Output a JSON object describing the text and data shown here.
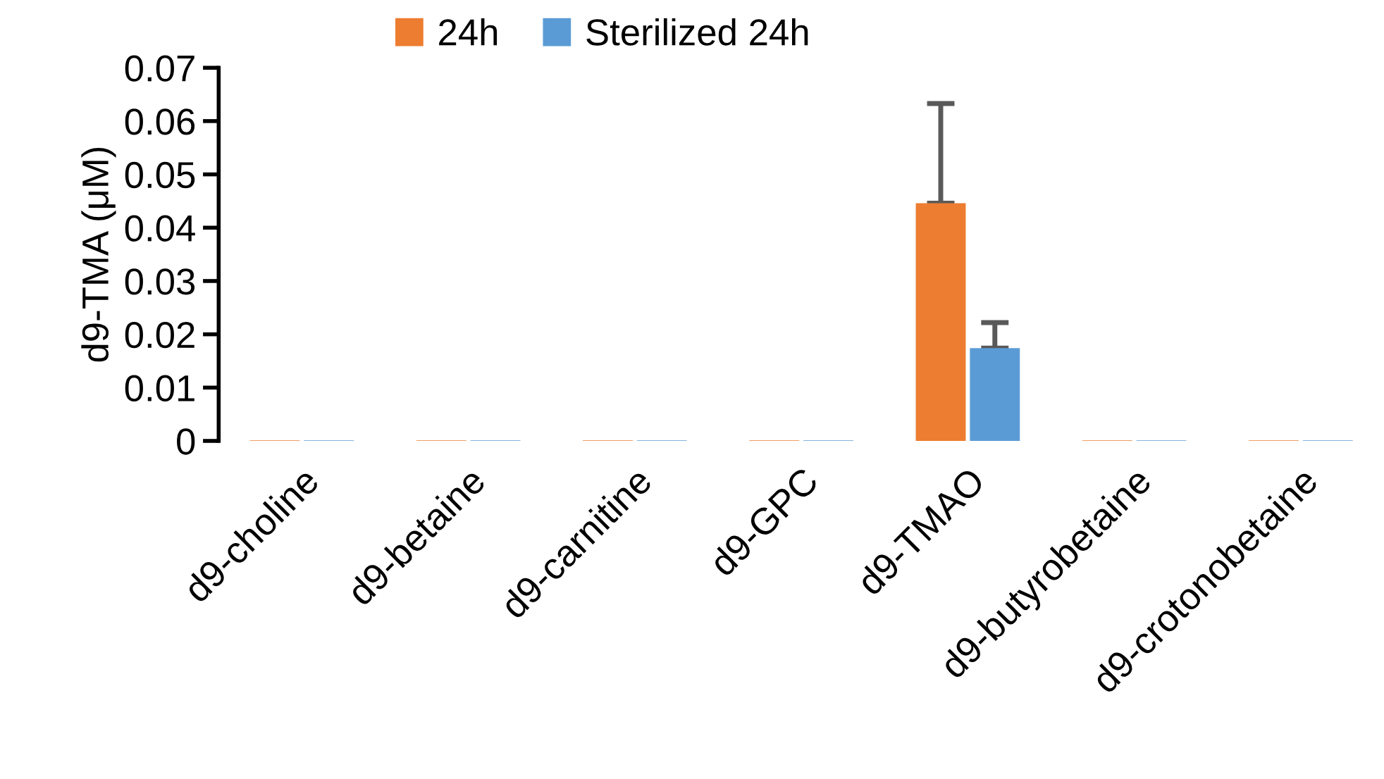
{
  "chart_data": {
    "type": "bar",
    "ylabel": "d9-TMA (μM)",
    "categories": [
      "d9-choline",
      "d9-betaine",
      "d9-carnitine",
      "d9-GPC",
      "d9-TMAO",
      "d9-butyrobetaine",
      "d9-crotonobetaine"
    ],
    "series": [
      {
        "name": "24h",
        "color": "#ed7d31",
        "values": [
          0.0001,
          0.0001,
          0.0001,
          0.0001,
          0.0446,
          0.0001,
          0.0001
        ],
        "errors": [
          null,
          null,
          null,
          null,
          [
            0.0446,
            0.0633
          ],
          null,
          null
        ]
      },
      {
        "name": "Sterilized 24h",
        "color": "#5b9bd5",
        "values": [
          0.0001,
          0.0001,
          0.0001,
          0.0001,
          0.0174,
          0.0001,
          0.0001
        ],
        "errors": [
          null,
          null,
          null,
          null,
          [
            0.0174,
            0.0222
          ],
          null,
          null
        ]
      }
    ],
    "ylim": [
      0,
      0.07
    ],
    "yticks": [
      0,
      0.01,
      0.02,
      0.03,
      0.04,
      0.05,
      0.06,
      0.07
    ],
    "grid": false,
    "legend": "top"
  }
}
